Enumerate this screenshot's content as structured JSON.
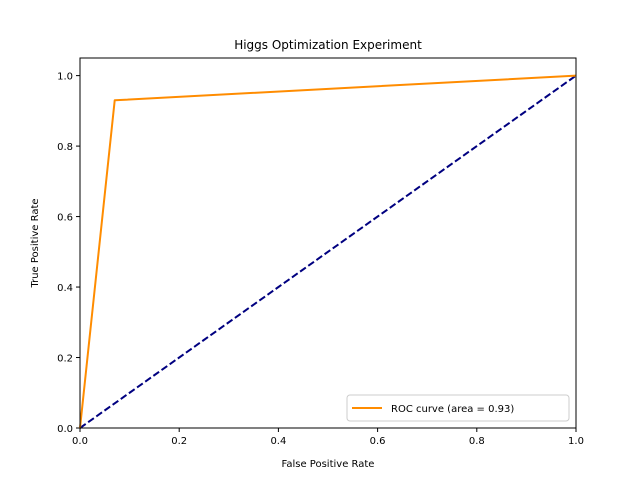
{
  "chart_data": {
    "type": "line",
    "title": "Higgs Optimization Experiment",
    "xlabel": "False Positive Rate",
    "ylabel": "True Positive Rate",
    "xlim": [
      0.0,
      1.0
    ],
    "ylim": [
      0.0,
      1.05
    ],
    "grid": false,
    "legend_position": "lower-right",
    "x_ticks": [
      0.0,
      0.2,
      0.4,
      0.6,
      0.8,
      1.0
    ],
    "y_ticks": [
      0.0,
      0.2,
      0.4,
      0.6,
      0.8,
      1.0
    ],
    "x_tick_labels": [
      "0.0",
      "0.2",
      "0.4",
      "0.6",
      "0.8",
      "1.0"
    ],
    "y_tick_labels": [
      "0.0",
      "0.2",
      "0.4",
      "0.6",
      "0.8",
      "1.0"
    ],
    "series": [
      {
        "name": "ROC curve (area = 0.93)",
        "color": "#ff8c00",
        "style": "solid",
        "x": [
          0.0,
          0.07,
          1.0
        ],
        "y": [
          0.0,
          0.93,
          1.0
        ]
      },
      {
        "color": "#000080",
        "style": "dashed",
        "x": [
          0.0,
          1.0
        ],
        "y": [
          0.0,
          1.0
        ]
      }
    ]
  }
}
